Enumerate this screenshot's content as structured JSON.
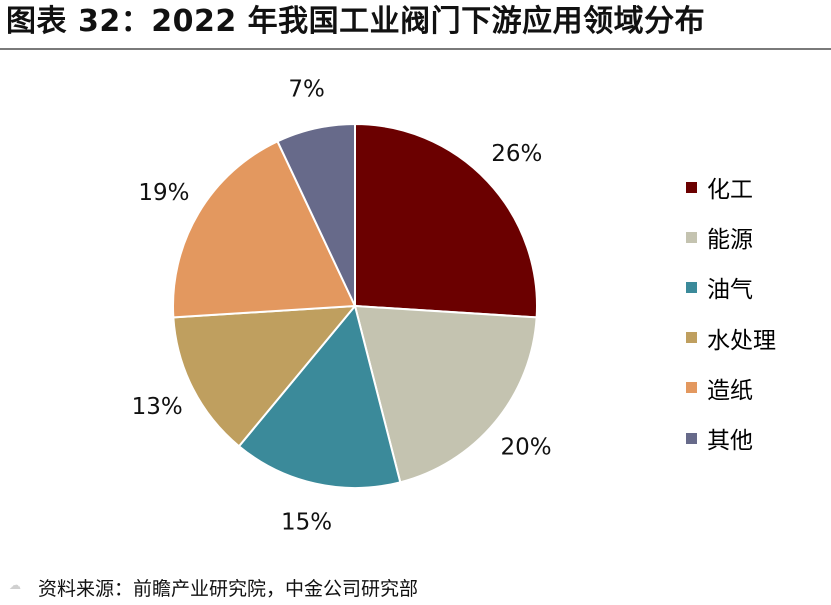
{
  "title": "图表 32：2022 年我国工业阀门下游应用领域分布",
  "source": "资料来源：前瞻产业研究院，中金公司研究部",
  "watermark_glyph": "☁",
  "chart_data": {
    "type": "pie",
    "title": "图表 32：2022 年我国工业阀门下游应用领域分布",
    "start_angle_deg": 0,
    "direction": "clockwise",
    "legend_position": "right",
    "slices": [
      {
        "label": "化工",
        "value": 26,
        "display": "26%",
        "color": "#6b0000"
      },
      {
        "label": "能源",
        "value": 20,
        "display": "20%",
        "color": "#c4c3b0"
      },
      {
        "label": "油气",
        "value": 15,
        "display": "15%",
        "color": "#3b8a9a"
      },
      {
        "label": "水处理",
        "value": 13,
        "display": "13%",
        "color": "#bf9f5f"
      },
      {
        "label": "造纸",
        "value": 19,
        "display": "19%",
        "color": "#e3985f"
      },
      {
        "label": "其他",
        "value": 7,
        "display": "7%",
        "color": "#676a8a"
      }
    ]
  }
}
